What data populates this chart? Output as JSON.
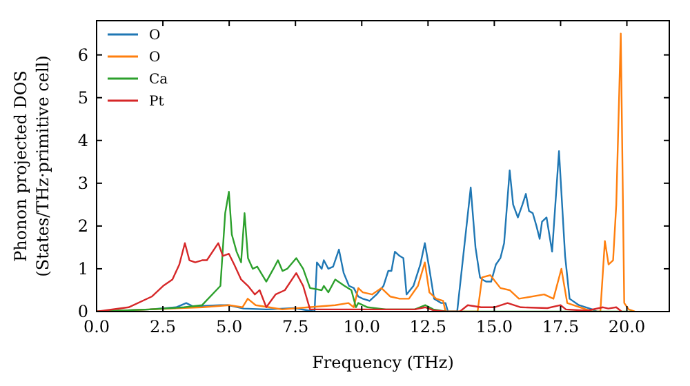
{
  "chart_data": {
    "type": "line",
    "xlabel": "Frequency (THz)",
    "ylabel": "Phonon projected DOS\n(States/THz·primitive cell)",
    "xlim": [
      0,
      21.6
    ],
    "ylim": [
      0,
      6.8
    ],
    "xticks": [
      {
        "value": 0,
        "label": "0.0"
      },
      {
        "value": 2.5,
        "label": "2.5"
      },
      {
        "value": 5,
        "label": "5.0"
      },
      {
        "value": 7.5,
        "label": "7.5"
      },
      {
        "value": 10,
        "label": "10.0"
      },
      {
        "value": 12.5,
        "label": "12.5"
      },
      {
        "value": 15,
        "label": "15.0"
      },
      {
        "value": 17.5,
        "label": "17.5"
      },
      {
        "value": 20,
        "label": "20.0"
      }
    ],
    "yticks": [
      0,
      1,
      2,
      3,
      4,
      5,
      6
    ],
    "grid": false,
    "legend": "top left",
    "line_style": "solid",
    "series": [
      {
        "name": "O",
        "color": "#1f77b4",
        "x": [
          0,
          2,
          3,
          3.38,
          3.64,
          4.67,
          4.94,
          5.54,
          6.4,
          7.45,
          8.05,
          8.22,
          8.31,
          8.49,
          8.57,
          8.74,
          8.92,
          9.14,
          9.32,
          9.52,
          9.7,
          9.87,
          10.04,
          10.3,
          10.56,
          10.82,
          11,
          11.12,
          11.25,
          11.43,
          11.57,
          11.69,
          11.95,
          12.21,
          12.38,
          12.55,
          12.73,
          12.99,
          13.16,
          13.25,
          13.6,
          14.11,
          14.29,
          14.46,
          14.54,
          14.7,
          14.88,
          15.06,
          15.23,
          15.37,
          15.58,
          15.71,
          15.89,
          16.06,
          16.19,
          16.31,
          16.45,
          16.59,
          16.71,
          16.8,
          16.97,
          17.18,
          17.44,
          17.67,
          17.84,
          18.19,
          18.7,
          18.87
        ],
        "values": [
          0,
          0.05,
          0.1,
          0.2,
          0.12,
          0.15,
          0.15,
          0.07,
          0.05,
          0.08,
          0.02,
          0,
          1.15,
          1,
          1.2,
          1,
          1.05,
          1.45,
          0.9,
          0.6,
          0.55,
          0.35,
          0.3,
          0.25,
          0.4,
          0.6,
          0.95,
          0.95,
          1.4,
          1.3,
          1.25,
          0.4,
          0.6,
          1.1,
          1.6,
          1,
          0.3,
          0.2,
          0.2,
          0,
          0,
          2.9,
          1.5,
          0.8,
          0.75,
          0.7,
          0.7,
          1.1,
          1.25,
          1.6,
          3.3,
          2.5,
          2.2,
          2.5,
          2.75,
          2.35,
          2.3,
          2,
          1.7,
          2.1,
          2.2,
          1.4,
          3.75,
          1.3,
          0.3,
          0.15,
          0.05,
          0
        ]
      },
      {
        "name": "O",
        "color": "#ff7f0e",
        "x": [
          0,
          2,
          4,
          5,
          5.5,
          5.7,
          6,
          6.5,
          7,
          8,
          9,
          9.5,
          9.7,
          9.87,
          10.04,
          10.39,
          10.74,
          11.08,
          11.43,
          11.78,
          12.12,
          12.38,
          12.55,
          12.81,
          13.07,
          13.16,
          14.37,
          14.54,
          14.85,
          15.23,
          15.58,
          15.93,
          16.88,
          17.23,
          17.53,
          17.75,
          18.7,
          19,
          19.17,
          19.31,
          19.48,
          19.6,
          19.77,
          19.9,
          20.07,
          20.3
        ],
        "values": [
          0,
          0.05,
          0.1,
          0.15,
          0.1,
          0.3,
          0.15,
          0.1,
          0.05,
          0.1,
          0.15,
          0.2,
          0.1,
          0.55,
          0.45,
          0.4,
          0.55,
          0.35,
          0.3,
          0.3,
          0.6,
          1.15,
          0.45,
          0.3,
          0.25,
          0,
          0,
          0.8,
          0.85,
          0.55,
          0.5,
          0.3,
          0.4,
          0.3,
          1,
          0.2,
          0,
          0,
          1.65,
          1.1,
          1.2,
          2.5,
          6.5,
          0.2,
          0.05,
          0
        ]
      },
      {
        "name": "Ca",
        "color": "#2ca02c",
        "x": [
          0,
          2,
          3.3,
          3.98,
          4.67,
          4.85,
          4.99,
          5.1,
          5.28,
          5.45,
          5.58,
          5.71,
          5.89,
          6.06,
          6.4,
          6.67,
          6.84,
          7.01,
          7.19,
          7.53,
          7.79,
          8.05,
          8.49,
          8.57,
          8.74,
          9,
          9.35,
          9.61,
          9.78,
          9.87,
          10.22,
          10.91,
          12,
          12.4,
          12.7,
          13.2,
          20.2
        ],
        "values": [
          0,
          0.05,
          0.1,
          0.15,
          0.6,
          2.3,
          2.8,
          1.8,
          1.4,
          1.15,
          2.3,
          1.25,
          1,
          1.05,
          0.7,
          1,
          1.2,
          0.95,
          1,
          1.25,
          1,
          0.55,
          0.5,
          0.6,
          0.45,
          0.75,
          0.6,
          0.5,
          0.1,
          0.2,
          0.1,
          0.05,
          0.05,
          0.15,
          0.05,
          0,
          0
        ]
      },
      {
        "name": "Pt",
        "color": "#d62728",
        "x": [
          0,
          1.21,
          2.08,
          2.51,
          2.86,
          3.12,
          3.33,
          3.5,
          3.72,
          3.98,
          4.16,
          4.59,
          4.76,
          4.99,
          5.19,
          5.45,
          5.71,
          5.97,
          6.15,
          6.4,
          6.75,
          7.1,
          7.53,
          7.79,
          8.05,
          10,
          12,
          12.4,
          12.7,
          13.2,
          13.7,
          14,
          14.5,
          15,
          15.5,
          16,
          17,
          17.5,
          17.7,
          18.5,
          19.1,
          19.3,
          19.6,
          19.8
        ],
        "values": [
          0,
          0.1,
          0.35,
          0.6,
          0.75,
          1.1,
          1.6,
          1.2,
          1.15,
          1.2,
          1.2,
          1.6,
          1.3,
          1.35,
          1.1,
          0.75,
          0.6,
          0.4,
          0.5,
          0.1,
          0.4,
          0.5,
          0.9,
          0.6,
          0.05,
          0.05,
          0.05,
          0.1,
          0.03,
          0,
          0,
          0.15,
          0.1,
          0.1,
          0.2,
          0.1,
          0.08,
          0.15,
          0.05,
          0.02,
          0.1,
          0.07,
          0.1,
          0
        ]
      }
    ]
  }
}
